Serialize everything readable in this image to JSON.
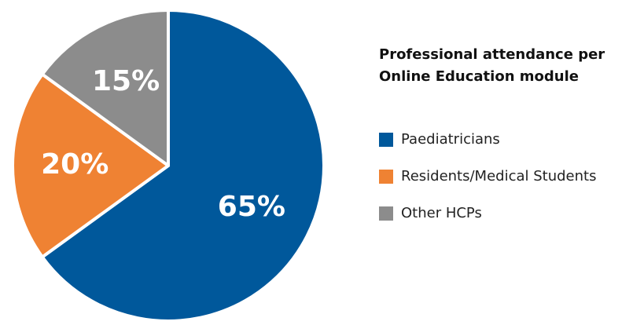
{
  "chart_data": {
    "type": "pie",
    "title": [
      "Professional attendance per",
      "Online Education module"
    ],
    "categories": [
      "Paediatricians",
      "Residents/Medical Students",
      "Other HCPs"
    ],
    "values": [
      65,
      20,
      15
    ],
    "value_labels": [
      "65%",
      "20%",
      "15%"
    ],
    "colors": [
      "#00589b",
      "#ef8233",
      "#8c8c8c"
    ],
    "legend": "right"
  }
}
